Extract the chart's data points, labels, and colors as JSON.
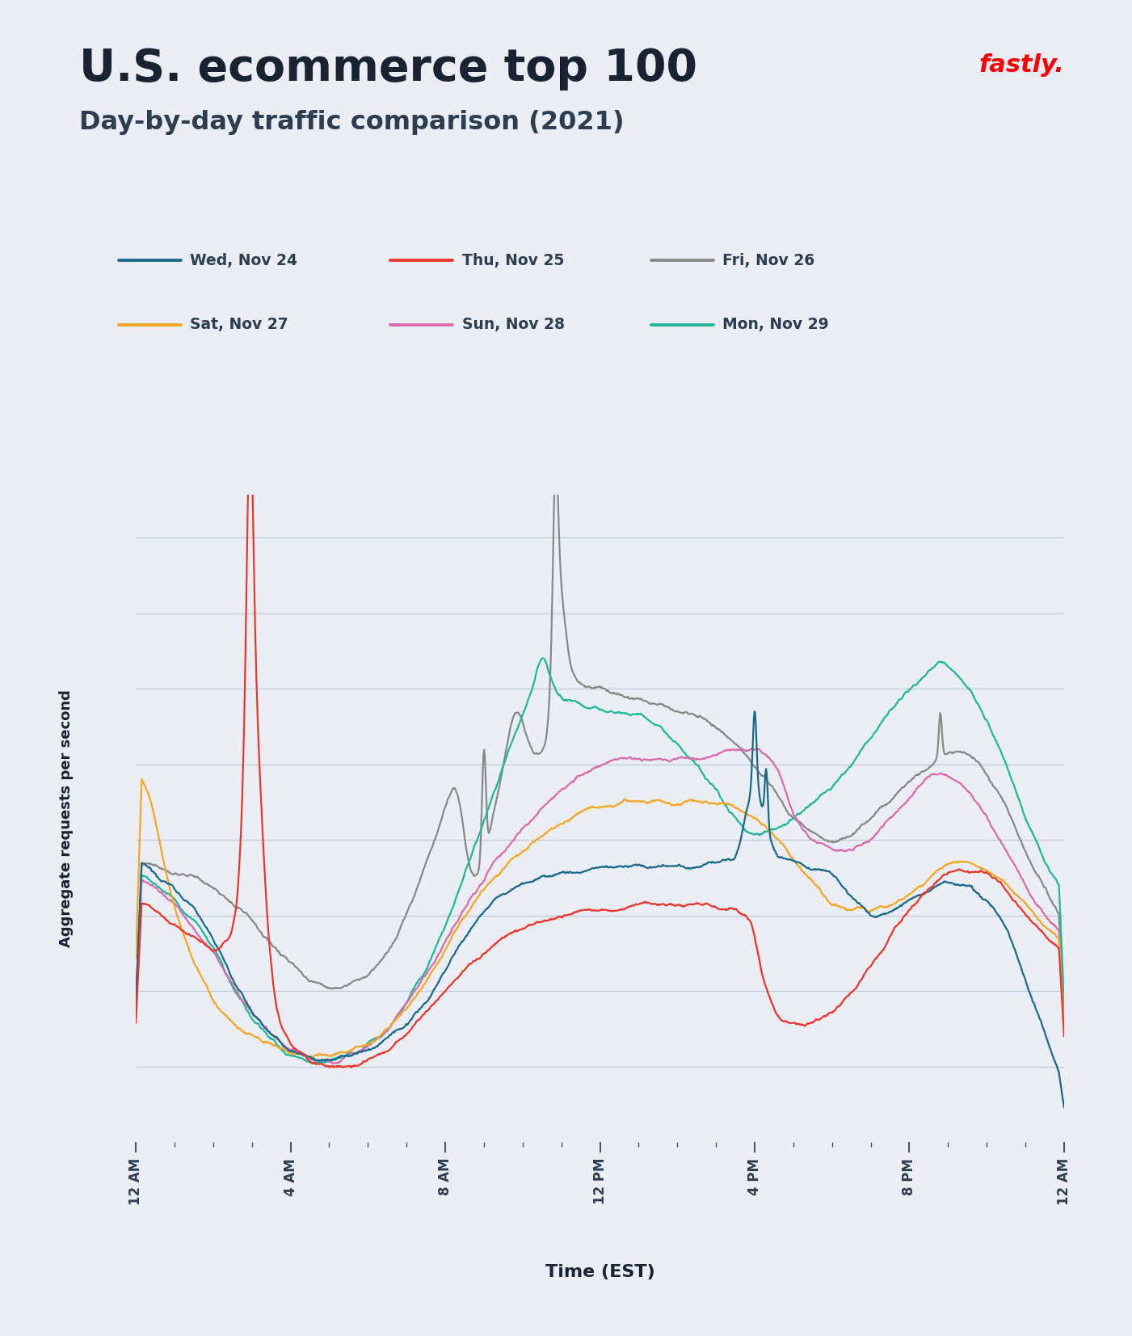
{
  "title": "U.S. ecommerce top 100",
  "subtitle": "Day-by-day traffic comparison (2021)",
  "xlabel": "Time (EST)",
  "ylabel": "Aggregate requests per second",
  "background_color": "#EAEEf4",
  "title_color": "#1a2332",
  "subtitle_color": "#2c3e50",
  "fastly_color": "#FF0000",
  "xtick_labels": [
    "12 AM",
    "4 AM",
    "8 AM",
    "12 PM",
    "4 PM",
    "8 PM",
    "12 AM"
  ],
  "xtick_positions": [
    0,
    4,
    8,
    12,
    16,
    20,
    24
  ],
  "lines": [
    {
      "label": "Wed, Nov 24",
      "color": "#1a6b8a"
    },
    {
      "label": "Thu, Nov 25",
      "color": "#e8382d"
    },
    {
      "label": "Fri, Nov 26",
      "color": "#888888"
    },
    {
      "label": "Sat, Nov 27",
      "color": "#f5a623"
    },
    {
      "label": "Sun, Nov 28",
      "color": "#d96aab"
    },
    {
      "label": "Mon, Nov 29",
      "color": "#1eb89a"
    }
  ]
}
